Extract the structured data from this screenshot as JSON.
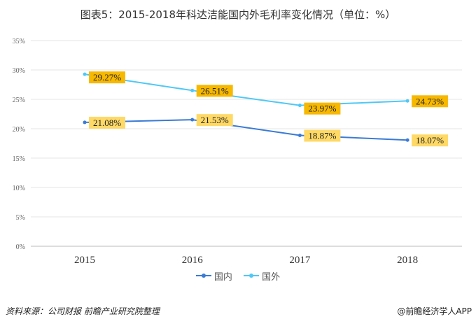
{
  "title": "图表5：2015-2018年科达洁能国内外毛利率变化情况（单位：%）",
  "source": "资料来源：公司财报  前瞻产业研究院整理",
  "credit": "@前瞻经济学人APP",
  "chart_data": {
    "type": "line",
    "title": "图表5：2015-2018年科达洁能国内外毛利率变化情况（单位：%）",
    "categories": [
      "2015",
      "2016",
      "2017",
      "2018"
    ],
    "ylim": [
      0,
      35
    ],
    "yticks": [
      0,
      5,
      10,
      15,
      20,
      25,
      30,
      35
    ],
    "ytick_labels": [
      "0%",
      "5%",
      "10%",
      "15%",
      "20%",
      "25%",
      "30%",
      "35%"
    ],
    "grid": true,
    "legend": "bottom",
    "series": [
      {
        "name": "国内",
        "color": "#3a7bd5",
        "label_bg": "#ffd966",
        "values": [
          21.08,
          21.53,
          18.87,
          18.07
        ],
        "labels": [
          "21.08%",
          "21.53%",
          "18.87%",
          "18.07%"
        ]
      },
      {
        "name": "国外",
        "color": "#4fc8f5",
        "label_bg": "#f7b800",
        "values": [
          29.27,
          26.51,
          23.97,
          24.73
        ],
        "labels": [
          "29.27%",
          "26.51%",
          "23.97%",
          "24.73%"
        ]
      }
    ]
  }
}
